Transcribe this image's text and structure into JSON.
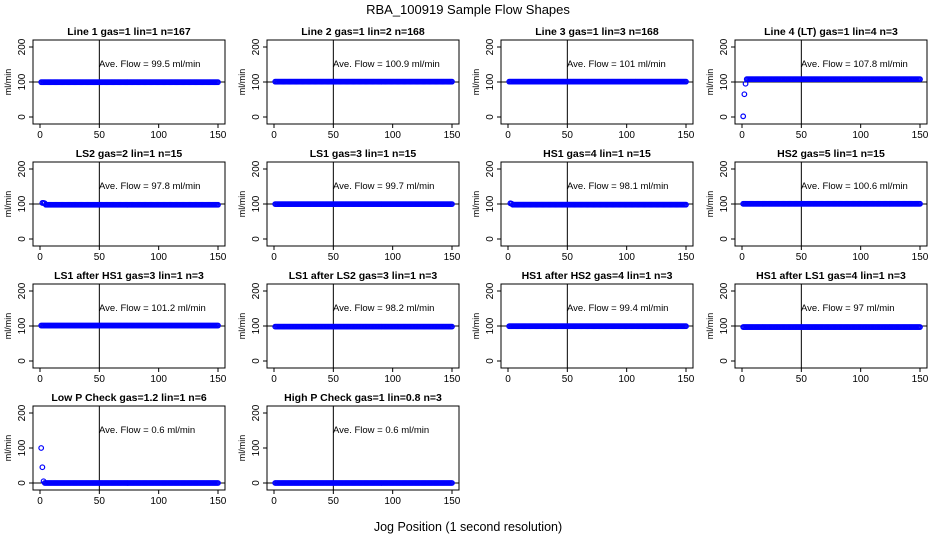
{
  "page": {
    "title": "RBA_100919  Sample Flow Shapes",
    "xlabel": "Jog Position (1 second resolution)"
  },
  "style": {
    "point_color": "#0000ff",
    "axis_color": "#000000",
    "background": "#ffffff"
  },
  "chart_data": [
    {
      "type": "scatter",
      "title": "Line 1 gas=1 lin=1 n=167",
      "ylabel": "ml/min",
      "annotation": "Ave. Flow =  99.5  ml/min",
      "xlim": [
        0,
        150
      ],
      "ylim": [
        -20,
        220
      ],
      "xticks": [
        "0",
        "50",
        "100",
        "150"
      ],
      "yticks": [
        "0",
        "100",
        "200"
      ],
      "hline": 100,
      "vline": 50,
      "level": 99.5,
      "start": []
    },
    {
      "type": "scatter",
      "title": "Line 2 gas=1 lin=2 n=168",
      "ylabel": "ml/min",
      "annotation": "Ave. Flow =  100.9  ml/min",
      "xlim": [
        0,
        150
      ],
      "ylim": [
        -20,
        220
      ],
      "xticks": [
        "0",
        "50",
        "100",
        "150"
      ],
      "yticks": [
        "0",
        "100",
        "200"
      ],
      "hline": 100,
      "vline": 50,
      "level": 100.9,
      "start": []
    },
    {
      "type": "scatter",
      "title": "Line 3 gas=1 lin=3 n=168",
      "ylabel": "ml/min",
      "annotation": "Ave. Flow =  101  ml/min",
      "xlim": [
        0,
        150
      ],
      "ylim": [
        -20,
        220
      ],
      "xticks": [
        "0",
        "50",
        "100",
        "150"
      ],
      "yticks": [
        "0",
        "100",
        "200"
      ],
      "hline": 100,
      "vline": 50,
      "level": 101,
      "start": []
    },
    {
      "type": "scatter",
      "title": "Line 4 (LT) gas=1 lin=4 n=3",
      "ylabel": "ml/min",
      "annotation": "Ave. Flow =  107.8  ml/min",
      "xlim": [
        0,
        150
      ],
      "ylim": [
        -20,
        220
      ],
      "xticks": [
        "0",
        "50",
        "100",
        "150"
      ],
      "yticks": [
        "0",
        "100",
        "200"
      ],
      "hline": 100,
      "vline": 50,
      "level": 108,
      "start": [
        [
          1,
          2
        ],
        [
          2,
          65
        ],
        [
          3,
          95
        ]
      ]
    },
    {
      "type": "scatter",
      "title": "LS2 gas=2 lin=1 n=15",
      "ylabel": "ml/min",
      "annotation": "Ave. Flow =  97.8  ml/min",
      "xlim": [
        0,
        150
      ],
      "ylim": [
        -20,
        220
      ],
      "xticks": [
        "0",
        "50",
        "100",
        "150"
      ],
      "yticks": [
        "0",
        "100",
        "200"
      ],
      "hline": 100,
      "vline": 50,
      "level": 97.8,
      "start": [
        [
          2,
          103
        ],
        [
          3,
          103
        ],
        [
          4,
          102
        ]
      ]
    },
    {
      "type": "scatter",
      "title": "LS1 gas=3 lin=1 n=15",
      "ylabel": "ml/min",
      "annotation": "Ave. Flow =  99.7  ml/min",
      "xlim": [
        0,
        150
      ],
      "ylim": [
        -20,
        220
      ],
      "xticks": [
        "0",
        "50",
        "100",
        "150"
      ],
      "yticks": [
        "0",
        "100",
        "200"
      ],
      "hline": 100,
      "vline": 50,
      "level": 99.7,
      "start": []
    },
    {
      "type": "scatter",
      "title": "HS1 gas=4 lin=1 n=15",
      "ylabel": "ml/min",
      "annotation": "Ave. Flow =  98.1  ml/min",
      "xlim": [
        0,
        150
      ],
      "ylim": [
        -20,
        220
      ],
      "xticks": [
        "0",
        "50",
        "100",
        "150"
      ],
      "yticks": [
        "0",
        "100",
        "200"
      ],
      "hline": 100,
      "vline": 50,
      "level": 98.1,
      "start": [
        [
          2,
          102
        ],
        [
          3,
          101
        ]
      ]
    },
    {
      "type": "scatter",
      "title": "HS2 gas=5 lin=1 n=15",
      "ylabel": "ml/min",
      "annotation": "Ave. Flow =  100.6  ml/min",
      "xlim": [
        0,
        150
      ],
      "ylim": [
        -20,
        220
      ],
      "xticks": [
        "0",
        "50",
        "100",
        "150"
      ],
      "yticks": [
        "0",
        "100",
        "200"
      ],
      "hline": 100,
      "vline": 50,
      "level": 100.6,
      "start": []
    },
    {
      "type": "scatter",
      "title": "LS1 after HS1 gas=3 lin=1 n=3",
      "ylabel": "ml/min",
      "annotation": "Ave. Flow =  101.2  ml/min",
      "xlim": [
        0,
        150
      ],
      "ylim": [
        -20,
        220
      ],
      "xticks": [
        "0",
        "50",
        "100",
        "150"
      ],
      "yticks": [
        "0",
        "100",
        "200"
      ],
      "hline": 100,
      "vline": 50,
      "level": 101.2,
      "start": []
    },
    {
      "type": "scatter",
      "title": "LS1 after LS2 gas=3 lin=1 n=3",
      "ylabel": "ml/min",
      "annotation": "Ave. Flow =  98.2  ml/min",
      "xlim": [
        0,
        150
      ],
      "ylim": [
        -20,
        220
      ],
      "xticks": [
        "0",
        "50",
        "100",
        "150"
      ],
      "yticks": [
        "0",
        "100",
        "200"
      ],
      "hline": 100,
      "vline": 50,
      "level": 98.2,
      "start": []
    },
    {
      "type": "scatter",
      "title": "HS1 after HS2 gas=4 lin=1 n=3",
      "ylabel": "ml/min",
      "annotation": "Ave. Flow =  99.4  ml/min",
      "xlim": [
        0,
        150
      ],
      "ylim": [
        -20,
        220
      ],
      "xticks": [
        "0",
        "50",
        "100",
        "150"
      ],
      "yticks": [
        "0",
        "100",
        "200"
      ],
      "hline": 100,
      "vline": 50,
      "level": 99.4,
      "start": []
    },
    {
      "type": "scatter",
      "title": "HS1 after LS1 gas=4 lin=1 n=3",
      "ylabel": "ml/min",
      "annotation": "Ave. Flow =  97  ml/min",
      "xlim": [
        0,
        150
      ],
      "ylim": [
        -20,
        220
      ],
      "xticks": [
        "0",
        "50",
        "100",
        "150"
      ],
      "yticks": [
        "0",
        "100",
        "200"
      ],
      "hline": 100,
      "vline": 50,
      "level": 97,
      "start": []
    },
    {
      "type": "scatter",
      "title": "Low P Check gas=1.2 lin=1 n=6",
      "ylabel": "ml/min",
      "annotation": "Ave. Flow =  0.6  ml/min",
      "xlim": [
        0,
        150
      ],
      "ylim": [
        -20,
        220
      ],
      "xticks": [
        "0",
        "50",
        "100",
        "150"
      ],
      "yticks": [
        "0",
        "100",
        "200"
      ],
      "hline": 0,
      "vline": 50,
      "level": 0,
      "start": [
        [
          1,
          100
        ],
        [
          2,
          45
        ],
        [
          3,
          5
        ]
      ]
    },
    {
      "type": "scatter",
      "title": "High P Check gas=1 lin=0.8 n=3",
      "ylabel": "ml/min",
      "annotation": "Ave. Flow =  0.6  ml/min",
      "xlim": [
        0,
        150
      ],
      "ylim": [
        -20,
        220
      ],
      "xticks": [
        "0",
        "50",
        "100",
        "150"
      ],
      "yticks": [
        "0",
        "100",
        "200"
      ],
      "hline": 0,
      "vline": 50,
      "level": 0,
      "start": []
    }
  ]
}
